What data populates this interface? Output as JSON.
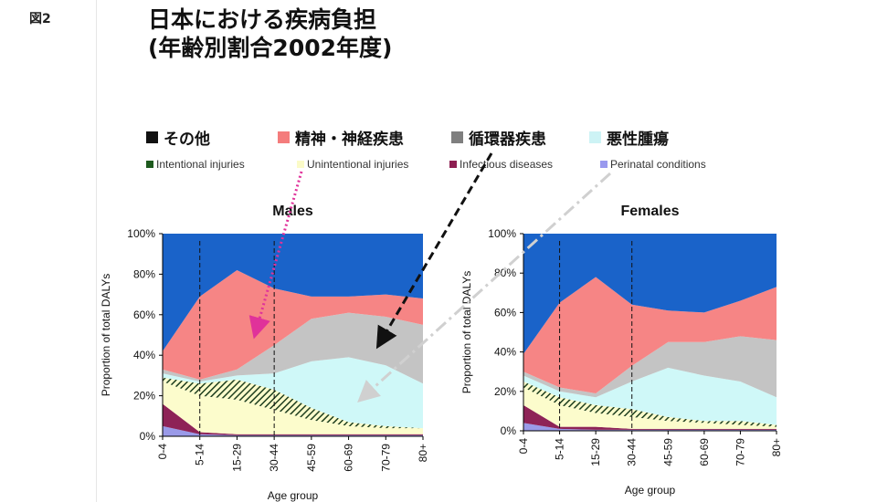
{
  "figure_label": "図2",
  "title": {
    "line1": "日本における疾病負担",
    "line2": "(年齢別割合2002年度)"
  },
  "legend_major": [
    {
      "label": "その他",
      "color": "#111111"
    },
    {
      "label": "精神・神経疾患",
      "color": "#f47c7c"
    },
    {
      "label": "循環器疾患",
      "color": "#7f7f7f"
    },
    {
      "label": "悪性腫瘍",
      "color": "#cdf3f5"
    }
  ],
  "legend_minor": [
    {
      "label": "Intentional injuries",
      "color": "#1e5a1e"
    },
    {
      "label": "Unintentional injuries",
      "color": "#fbfbc8"
    },
    {
      "label": "Infectious diseases",
      "color": "#8e1f52"
    },
    {
      "label": "Perinatal conditions",
      "color": "#9999ee"
    }
  ],
  "colors": {
    "perinatal": "#9a9ae8",
    "infectious": "#8e2357",
    "unintentional": "#fcfccc",
    "intentional_hatch": "#1f3f1f",
    "cancer": "#cff8f8",
    "cardio": "#c4c4c4",
    "neuro": "#f68585",
    "other": "#1a63c9",
    "arrow_pink": "#e0329a",
    "arrow_black": "#111111",
    "arrow_gray": "#d0d0d0"
  },
  "chart_data": [
    {
      "type": "area",
      "title": "Males",
      "xlabel": "Age group",
      "ylabel": "Proportion of total DALYs",
      "categories": [
        "0-4",
        "5-14",
        "15-29",
        "30-44",
        "45-59",
        "60-69",
        "70-79",
        "80+"
      ],
      "ylim": [
        0,
        100
      ],
      "yticks": [
        "0%",
        "20%",
        "40%",
        "60%",
        "80%",
        "100%"
      ],
      "stacked": true,
      "series_order_bottom_to_top": [
        "Perinatal conditions",
        "Infectious diseases",
        "Unintentional injuries",
        "Intentional injuries",
        "悪性腫瘍",
        "循環器疾患",
        "精神・神経疾患",
        "その他"
      ],
      "cumulative_top": {
        "Perinatal conditions": [
          5,
          1,
          0.5,
          0.5,
          0.5,
          0.5,
          0.5,
          0.5
        ],
        "Infectious diseases": [
          16,
          2,
          1,
          1,
          1,
          1,
          1,
          1
        ],
        "Unintentional injuries": [
          27,
          20,
          18,
          13,
          8,
          5,
          4,
          4
        ],
        "Intentional injuries": [
          29,
          26,
          28,
          23,
          14,
          7,
          5,
          4
        ],
        "悪性腫瘍": [
          31,
          27,
          30,
          31,
          37,
          39,
          35,
          26
        ],
        "循環器疾患": [
          33,
          28,
          33,
          45,
          58,
          61,
          59,
          55
        ],
        "精神・神経疾患": [
          42,
          69,
          82,
          73,
          69,
          69,
          70,
          68
        ],
        "その他": [
          100,
          100,
          100,
          100,
          100,
          100,
          100,
          100
        ]
      },
      "dashed_markers_at": [
        "5-14",
        "30-44"
      ]
    },
    {
      "type": "area",
      "title": "Females",
      "xlabel": "Age group",
      "ylabel": "Proportion of total DALYs",
      "categories": [
        "0-4",
        "5-14",
        "15-29",
        "30-44",
        "45-59",
        "60-69",
        "70-79",
        "80+"
      ],
      "ylim": [
        0,
        100
      ],
      "yticks": [
        "0%",
        "20%",
        "40%",
        "60%",
        "80%",
        "100%"
      ],
      "stacked": true,
      "series_order_bottom_to_top": [
        "Perinatal conditions",
        "Infectious diseases",
        "Unintentional injuries",
        "Intentional injuries",
        "悪性腫瘍",
        "循環器疾患",
        "精神・神経疾患",
        "その他"
      ],
      "cumulative_top": {
        "Perinatal conditions": [
          4,
          1,
          0.5,
          0.5,
          0.5,
          0.5,
          0.5,
          0.5
        ],
        "Infectious diseases": [
          13,
          2,
          2,
          1,
          1,
          1,
          1,
          1
        ],
        "Unintentional injuries": [
          22,
          13,
          9,
          7,
          5,
          4,
          3,
          2
        ],
        "Intentional injuries": [
          25,
          17,
          13,
          11,
          7,
          5,
          5,
          3
        ],
        "悪性腫瘍": [
          28,
          20,
          17,
          25,
          32,
          28,
          25,
          17
        ],
        "循環器疾患": [
          30,
          22,
          19,
          33,
          45,
          45,
          48,
          46
        ],
        "精神・神経疾患": [
          39,
          65,
          78,
          64,
          61,
          60,
          66,
          73
        ],
        "その他": [
          100,
          100,
          100,
          100,
          100,
          100,
          100,
          100
        ]
      },
      "dashed_markers_at": [
        "5-14",
        "30-44"
      ]
    }
  ]
}
